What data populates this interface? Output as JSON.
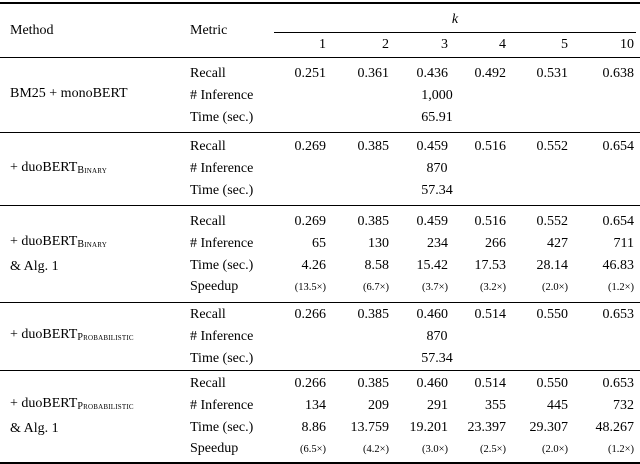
{
  "header": {
    "method": "Method",
    "metric": "Metric",
    "k": "k",
    "ks": [
      "1",
      "2",
      "3",
      "4",
      "5",
      "10"
    ]
  },
  "blocks": [
    {
      "method1": "BM25 + monoBERT",
      "sub1": "",
      "method2": "",
      "rows": [
        {
          "label": "Recall",
          "values": [
            "0.251",
            "0.361",
            "0.436",
            "0.492",
            "0.531",
            "0.638"
          ]
        },
        {
          "label": "# Inference",
          "value": "1,000"
        },
        {
          "label": "Time (sec.)",
          "value": "65.91"
        }
      ]
    },
    {
      "method1": "+ duoBERT",
      "sub1": "Binary",
      "method2": "",
      "rows": [
        {
          "label": "Recall",
          "values": [
            "0.269",
            "0.385",
            "0.459",
            "0.516",
            "0.552",
            "0.654"
          ]
        },
        {
          "label": "# Inference",
          "value": "870"
        },
        {
          "label": "Time (sec.)",
          "value": "57.34"
        }
      ]
    },
    {
      "method1": "+ duoBERT",
      "sub1": "Binary",
      "method2": "& Alg. 1",
      "rows": [
        {
          "label": "Recall",
          "values": [
            "0.269",
            "0.385",
            "0.459",
            "0.516",
            "0.552",
            "0.654"
          ]
        },
        {
          "label": "# Inference",
          "values": [
            "65",
            "130",
            "234",
            "266",
            "427",
            "711"
          ]
        },
        {
          "label": "Time (sec.)",
          "values": [
            "4.26",
            "8.58",
            "15.42",
            "17.53",
            "28.14",
            "46.83"
          ]
        },
        {
          "label": "Speedup",
          "values": [
            "(13.5×)",
            "(6.7×)",
            "(3.7×)",
            "(3.2×)",
            "(2.0×)",
            "(1.2×)"
          ]
        }
      ]
    },
    {
      "method1": "+ duoBERT",
      "sub1": "Probabilistic",
      "method2": "",
      "rows": [
        {
          "label": "Recall",
          "values": [
            "0.266",
            "0.385",
            "0.460",
            "0.514",
            "0.550",
            "0.653"
          ]
        },
        {
          "label": "# Inference",
          "value": "870"
        },
        {
          "label": "Time (sec.)",
          "value": "57.34"
        }
      ]
    },
    {
      "method1": "+ duoBERT",
      "sub1": "Probabilistic",
      "method2": "& Alg. 1",
      "rows": [
        {
          "label": "Recall",
          "values": [
            "0.266",
            "0.385",
            "0.460",
            "0.514",
            "0.550",
            "0.653"
          ]
        },
        {
          "label": "# Inference",
          "values": [
            "134",
            "209",
            "291",
            "355",
            "445",
            "732"
          ]
        },
        {
          "label": "Time (sec.)",
          "values": [
            "8.86",
            "13.759",
            "19.201",
            "23.397",
            "29.307",
            "48.267"
          ]
        },
        {
          "label": "Speedup",
          "values": [
            "(6.5×)",
            "(4.2×)",
            "(3.0×)",
            "(2.5×)",
            "(2.0×)",
            "(1.2×)"
          ]
        }
      ]
    }
  ]
}
